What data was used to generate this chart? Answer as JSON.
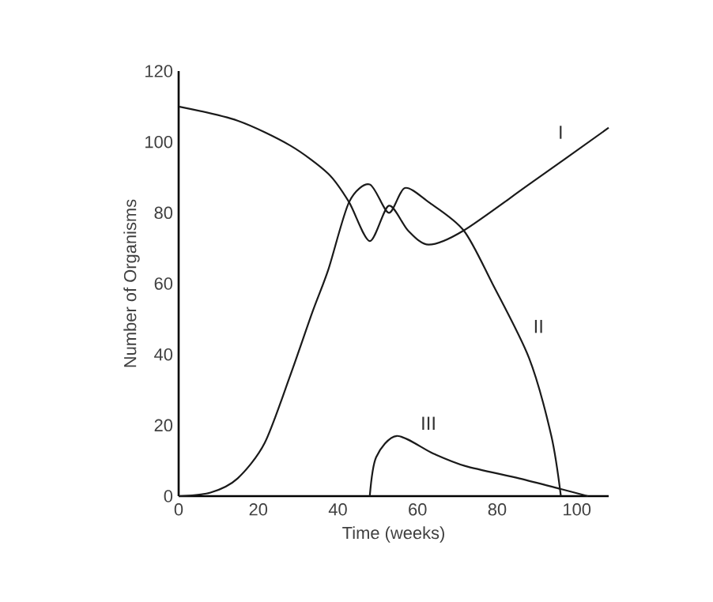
{
  "chart_data": {
    "type": "line",
    "xlabel": "Time (weeks)",
    "ylabel": "Number of Organisms",
    "xlim": [
      0,
      108
    ],
    "ylim": [
      0,
      120
    ],
    "xticks": [
      0,
      20,
      40,
      60,
      80,
      100
    ],
    "yticks": [
      0,
      20,
      40,
      60,
      80,
      100,
      120
    ],
    "marker": "none",
    "line_style": "solid",
    "series": [
      {
        "name": "I",
        "color": "#1a1a1a",
        "x": [
          0,
          14.8,
          28,
          37.6,
          42.8,
          48,
          52.8,
          57.6,
          62.8,
          71.6,
          88,
          108
        ],
        "values": [
          110,
          106,
          99,
          91,
          83,
          72,
          82,
          75,
          71,
          75,
          88,
          104
        ]
      },
      {
        "name": "II",
        "color": "#1a1a1a",
        "x": [
          0,
          8,
          14.8,
          21.6,
          28,
          33.6,
          37.6,
          42.8,
          48,
          52.8,
          56.8,
          62.8,
          71.6,
          78.8,
          88,
          93.6,
          96
        ],
        "values": [
          0,
          1,
          5,
          15,
          34,
          52,
          64,
          83,
          88,
          80,
          87,
          83,
          75,
          60,
          39,
          17,
          0
        ]
      },
      {
        "name": "III",
        "color": "#1a1a1a",
        "x": [
          48,
          49.6,
          54.8,
          64,
          72,
          85.6,
          96,
          102.8
        ],
        "values": [
          0,
          11,
          17,
          12,
          8.5,
          5,
          2,
          0
        ]
      }
    ]
  }
}
